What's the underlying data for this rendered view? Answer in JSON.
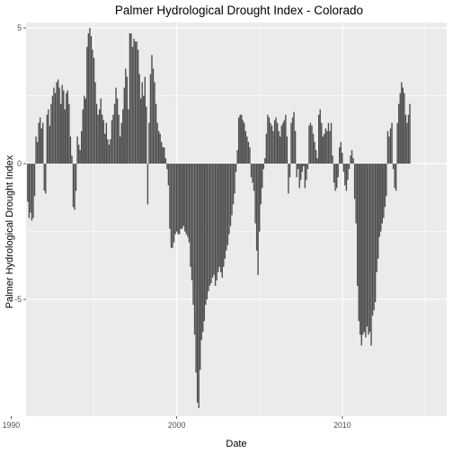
{
  "chart_data": {
    "type": "bar",
    "title": "Palmer Hydrological Drought Index - Colorado",
    "xlabel": "Date",
    "ylabel": "Palmer Hydrological Drought Index",
    "xlim": [
      1990.9,
      2016.3
    ],
    "ylim": [
      -9.3,
      5.2
    ],
    "x_ticks": [
      1990,
      2000,
      2010
    ],
    "x_tick_labels": [
      "1990",
      "2000",
      "2010"
    ],
    "y_ticks": [
      -5,
      0,
      5
    ],
    "y_tick_labels": [
      "-5",
      "0",
      "5"
    ],
    "grid": true,
    "colors": {
      "panel_background": "#ebebeb",
      "grid_major": "#ffffff",
      "bar_fill": "#4d4d4d",
      "tick_label": "#4d4d4d"
    },
    "x_step_years": 0.0833,
    "series": [
      {
        "x_start": 1991.0,
        "values": [
          -1.4,
          -2.0,
          -1.8,
          -2.1,
          -2.0,
          -1.2,
          1.0,
          0.8,
          1.5,
          1.7,
          1.3,
          1.5,
          -1.0,
          -1.1,
          1.8,
          2.0,
          1.4,
          2.2,
          2.5,
          2.8,
          2.6,
          3.0,
          3.1,
          2.8,
          2.2,
          2.9,
          2.7,
          2.0,
          2.6,
          2.7,
          2.2,
          1.0,
          0.3,
          -1.6,
          -1.7,
          -1.0,
          1.0,
          0.7,
          0.5,
          1.2,
          2.0,
          2.5,
          2.4,
          4.3,
          4.8,
          5.0,
          4.7,
          4.2,
          3.9,
          3.0,
          2.2,
          1.8,
          2.0,
          2.4,
          1.8,
          1.6,
          1.1,
          1.5,
          0.9,
          0.7,
          0.9,
          1.6,
          1.8,
          2.2,
          2.8,
          2.4,
          1.8,
          1.0,
          1.5,
          2.0,
          2.8,
          3.5,
          3.2,
          2.0,
          4.8,
          4.8,
          4.3,
          4.6,
          4.5,
          4.5,
          4.2,
          3.3,
          2.4,
          3.0,
          2.5,
          3.2,
          2.1,
          -1.5,
          1.5,
          3.3,
          4.0,
          3.5,
          3.0,
          2.2,
          1.5,
          1.2,
          1.1,
          0.8,
          0.6,
          0.6,
          0.2,
          -0.2,
          -0.8,
          -2.4,
          -3.1,
          -3.1,
          -2.9,
          -2.6,
          -2.5,
          -2.6,
          -2.6,
          -2.4,
          -2.4,
          -2.3,
          -2.5,
          -2.6,
          -2.7,
          -2.9,
          -3.8,
          -4.3,
          -5.2,
          -6.3,
          -7.7,
          -8.8,
          -9.0,
          -7.6,
          -6.5,
          -6.2,
          -5.8,
          -5.2,
          -5.0,
          -4.7,
          -4.5,
          -4.4,
          -4.2,
          -4.1,
          -4.5,
          -4.3,
          -4.0,
          -3.8,
          -4.0,
          -4.2,
          -3.8,
          -3.5,
          -3.2,
          -3.0,
          -2.6,
          -2.3,
          -1.9,
          -1.5,
          -1.1,
          -0.3,
          0.5,
          1.7,
          1.8,
          1.8,
          1.6,
          1.5,
          1.2,
          1.0,
          0.8,
          0.6,
          -0.5,
          -0.7,
          -1.0,
          -2.2,
          -3.2,
          -4.1,
          -2.5,
          -1.5,
          -0.9,
          -0.2,
          0.2,
          1.1,
          1.8,
          1.7,
          1.5,
          1.4,
          1.2,
          1.6,
          1.7,
          1.5,
          1.2,
          1.0,
          1.4,
          1.5,
          1.6,
          1.8,
          1.0,
          -1.1,
          -0.5,
          1.5,
          1.7,
          1.9,
          1.2,
          -0.5,
          -0.2,
          -0.9,
          -0.6,
          -0.3,
          -0.1,
          -0.9,
          -0.6,
          -0.2,
          1.4,
          1.5,
          1.4,
          1.1,
          0.8,
          0.5,
          0.2,
          1.8,
          2.0,
          1.5,
          1.0,
          1.1,
          1.3,
          1.2,
          1.5,
          1.2,
          1.5,
          0.3,
          -0.7,
          -1.0,
          -0.9,
          -0.5,
          0.6,
          0.8,
          0.4,
          -0.3,
          -0.8,
          -1.0,
          -0.6,
          -0.2,
          0.3,
          0.5,
          0.2,
          -1.3,
          -2.2,
          -4.5,
          -5.8,
          -6.3,
          -6.7,
          -6.3,
          -6.2,
          -6.4,
          -6.0,
          -6.3,
          -6.2,
          -6.7,
          -5.6,
          -5.4,
          -5.1,
          -4.0,
          -3.5,
          -2.7,
          -2.5,
          -2.2,
          -2.0,
          -1.6,
          -1.2,
          1.2,
          1.0,
          1.3,
          1.5,
          -0.2,
          -0.9,
          -1.0,
          1.5,
          2.2,
          2.6,
          3.0,
          2.8,
          2.6,
          1.8,
          1.5,
          1.8,
          2.2
        ]
      }
    ]
  }
}
